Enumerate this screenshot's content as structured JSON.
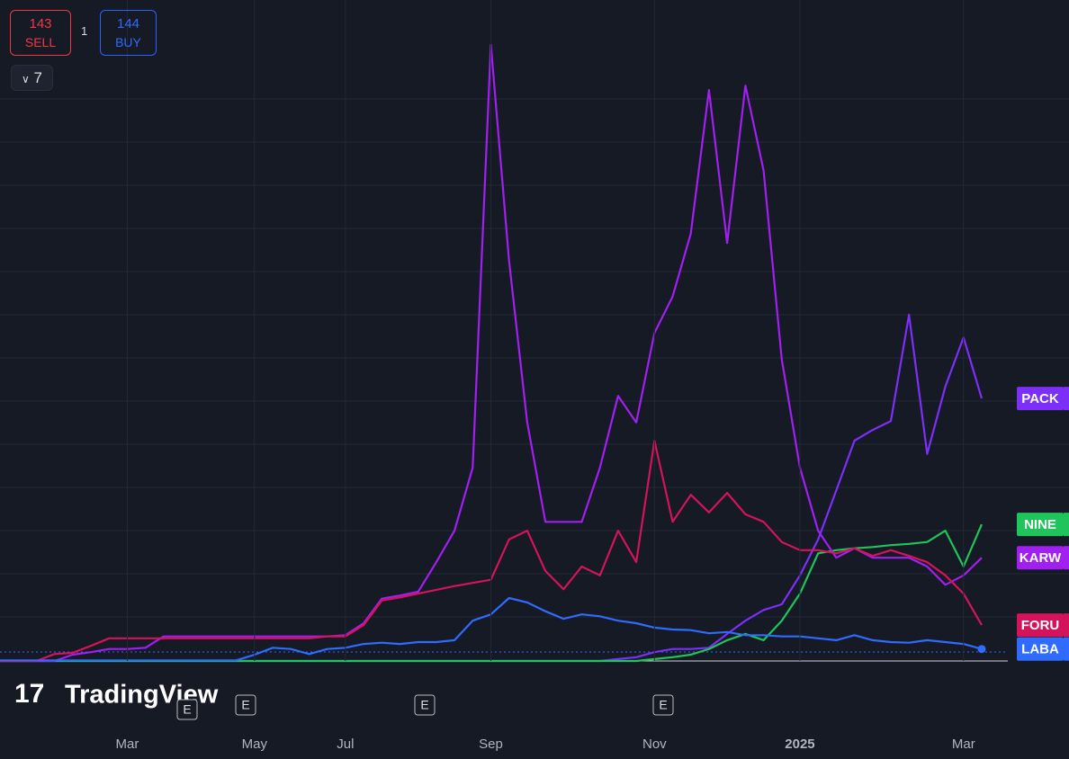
{
  "ui": {
    "sell_price": "143",
    "sell_label": "SELL",
    "quantity": "1",
    "buy_price": "144",
    "buy_label": "BUY",
    "indicators_count": "7",
    "logo": "TradingView",
    "earnings": [
      "E",
      "E",
      "E",
      "E"
    ]
  },
  "chart_data": {
    "type": "line",
    "categories": [
      null,
      null,
      null,
      null,
      null,
      null,
      null,
      "Mar",
      null,
      null,
      null,
      null,
      null,
      null,
      "May",
      null,
      null,
      null,
      null,
      "Jul",
      null,
      null,
      null,
      null,
      null,
      null,
      null,
      "Sep",
      null,
      null,
      null,
      null,
      null,
      null,
      null,
      null,
      "Nov",
      null,
      null,
      null,
      null,
      null,
      null,
      null,
      "2025",
      null,
      null,
      null,
      null,
      null,
      null,
      null,
      null,
      "Mar",
      null
    ],
    "ylim": [
      0,
      100
    ],
    "series": [
      {
        "name": "PACK",
        "color": "#7b2ff7",
        "values": [
          0,
          0,
          0,
          0,
          0,
          0,
          0,
          0,
          0,
          0,
          0,
          0,
          0,
          0,
          0,
          0,
          0,
          0,
          0,
          0,
          0,
          0,
          0,
          0,
          0,
          0,
          0,
          0,
          0,
          0,
          0,
          0,
          0,
          0,
          0.3,
          0.6,
          1.4,
          1.9,
          1.9,
          2.1,
          4.3,
          6.4,
          8.1,
          9,
          13.6,
          19.3,
          27.1,
          35,
          36.7,
          38.1,
          55,
          32.9,
          43.6,
          51.4,
          41.7
        ]
      },
      {
        "name": "NINE",
        "color": "#1fc45a",
        "values": [
          0,
          0,
          0,
          0,
          0,
          0,
          0,
          0,
          0,
          0,
          0,
          0,
          0,
          0,
          0,
          0,
          0,
          0,
          0,
          0,
          0,
          0,
          0,
          0,
          0,
          0,
          0,
          0,
          0,
          0,
          0,
          0,
          0,
          0,
          0,
          0,
          0.3,
          0.6,
          1,
          1.9,
          3.3,
          4.3,
          3.3,
          6.4,
          10.7,
          17.1,
          17.6,
          17.9,
          18.1,
          18.4,
          18.6,
          18.9,
          20.7,
          15,
          21.7
        ]
      },
      {
        "name": "KARW",
        "color": "#a11ff0",
        "values": [
          0,
          0,
          0,
          0,
          1,
          1.4,
          1.9,
          1.9,
          2.1,
          3.9,
          3.9,
          3.9,
          3.9,
          3.9,
          3.9,
          3.9,
          3.9,
          3.9,
          3.9,
          4.1,
          6,
          9.9,
          10.4,
          11,
          15.7,
          20.7,
          30.7,
          97.9,
          63.6,
          37.9,
          22.1,
          22.1,
          22.1,
          30.7,
          42.1,
          37.9,
          52.1,
          57.9,
          67.9,
          90.7,
          66.4,
          91.4,
          77.9,
          47.9,
          30.7,
          20.7,
          16.4,
          17.9,
          16.4,
          16.4,
          16.4,
          15,
          12.1,
          13.6,
          16.4
        ]
      },
      {
        "name": "FORU",
        "color": "#d4145a",
        "values": [
          0,
          0,
          0,
          1.1,
          1.3,
          2.4,
          3.6,
          3.6,
          3.6,
          3.6,
          3.6,
          3.6,
          3.6,
          3.6,
          3.6,
          3.6,
          3.6,
          3.6,
          3.9,
          3.9,
          5.7,
          9.6,
          10.1,
          10.7,
          11.3,
          11.9,
          12.4,
          12.9,
          19.3,
          20.7,
          14.3,
          11.4,
          15,
          13.6,
          20.7,
          15.7,
          35,
          22.1,
          26.4,
          23.6,
          26.7,
          23.3,
          22.1,
          18.9,
          17.6,
          17.6,
          17.1,
          17.9,
          16.7,
          17.6,
          16.7,
          15.7,
          13.6,
          10.7,
          5.7
        ]
      },
      {
        "name": "LABA",
        "color": "#2f6bff",
        "values": [
          0.1,
          0.1,
          0.1,
          0.1,
          0.1,
          0.1,
          0.1,
          0.1,
          0.1,
          0.1,
          0.1,
          0.1,
          0.1,
          0.1,
          1,
          2.1,
          1.9,
          1.1,
          1.9,
          2.1,
          2.7,
          2.9,
          2.7,
          3,
          3,
          3.3,
          6.4,
          7.4,
          10,
          9.3,
          7.9,
          6.7,
          7.4,
          7.1,
          6.4,
          6,
          5.3,
          5,
          4.9,
          4.4,
          4.6,
          4.1,
          4.1,
          3.9,
          3.9,
          3.6,
          3.3,
          4.1,
          3.3,
          3,
          2.9,
          3.3,
          3,
          2.7,
          1.9
        ]
      }
    ]
  }
}
